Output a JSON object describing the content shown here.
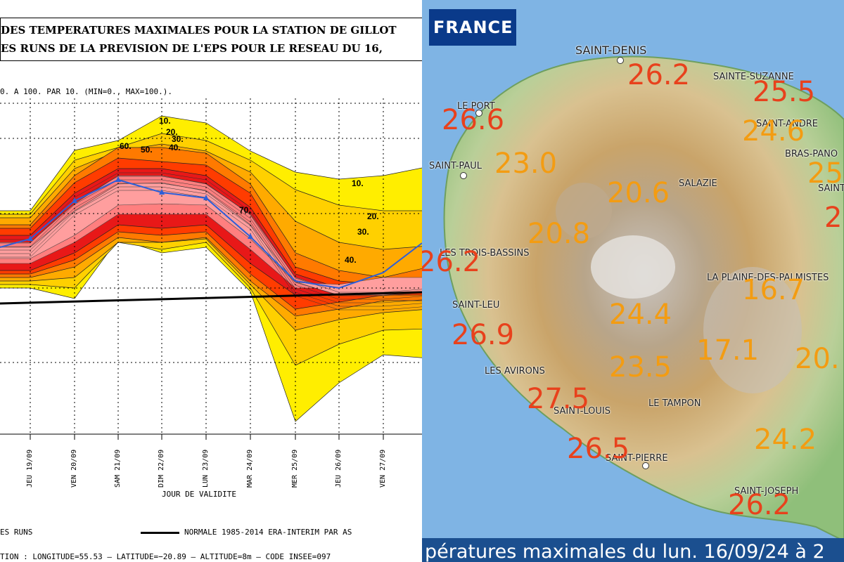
{
  "left_panel": {
    "title_line1": "DES TEMPERATURES MAXIMALES POUR LA STATION DE GILLOT",
    "title_line2": "ES RUNS DE LA PREVISION DE L'EPS POUR LE RESEAU DU 16,",
    "scale_note": "0. A 100. PAR 10. (MIN=0., MAX=100.).",
    "xlabel": "JOUR DE VALIDITE",
    "legend_runs": "ES RUNS",
    "legend_normal": "NORMALE 1985-2014 ERA-INTERIM PAR AS",
    "station_info": "TION : LONGITUDE=55.53 — LATITUDE=−20.89 — ALTITUDE=8m — CODE INSEE=097"
  },
  "chart_data": {
    "type": "area",
    "categories": [
      "JEU 19/09",
      "VEN 20/09",
      "SAM 21/09",
      "DIM 22/09",
      "LUN 23/09",
      "MAR 24/09",
      "MER 25/09",
      "JEU 26/09",
      "VEN 27/09"
    ],
    "contour_labels": [
      "10.",
      "20.",
      "30.",
      "40.",
      "50.",
      "60.",
      "70.",
      "10.",
      "20.",
      "30.",
      "40."
    ],
    "series_colors": [
      "#ffee00",
      "#ffd000",
      "#ffaa00",
      "#ff7a00",
      "#ff3c00",
      "#e81818",
      "#ff7f7f",
      "#ff9e9e",
      "#2d5fd8"
    ],
    "colors": {
      "normal_line": "#000000",
      "median_line": "#2d5fd8"
    }
  },
  "right_panel": {
    "badge": "FRANCE",
    "places": [
      "SAINT-DENIS",
      "SAINTE-SUZANNE",
      "LE PORT",
      "SAINT-ANDRE",
      "BRAS-PANO",
      "SAINT-PAUL",
      "SALAZIE",
      "SAINT",
      "LES TROIS-BASSINS",
      "LA PLAINE-DES-PALMISTES",
      "SAINT-LEU",
      "LES AVIRONS",
      "SAINT-LOUIS",
      "LE TAMPON",
      "SAINT-PIERRE",
      "SAINT-JOSEPH"
    ],
    "temps": [
      "26.2",
      "25.5",
      "26.6",
      "24.6",
      "25",
      "23.0",
      "20.6",
      "2",
      "20.8",
      "26.2",
      "16.7",
      "24.4",
      "26.9",
      "17.1",
      "20.",
      "23.5",
      "27.5",
      "24.2",
      "26.5",
      "26.2"
    ],
    "banner": "pératures maximales du lun. 16/09/24 à 2",
    "colors": {
      "hot": "#e8411c",
      "warm": "#f39c12"
    }
  }
}
